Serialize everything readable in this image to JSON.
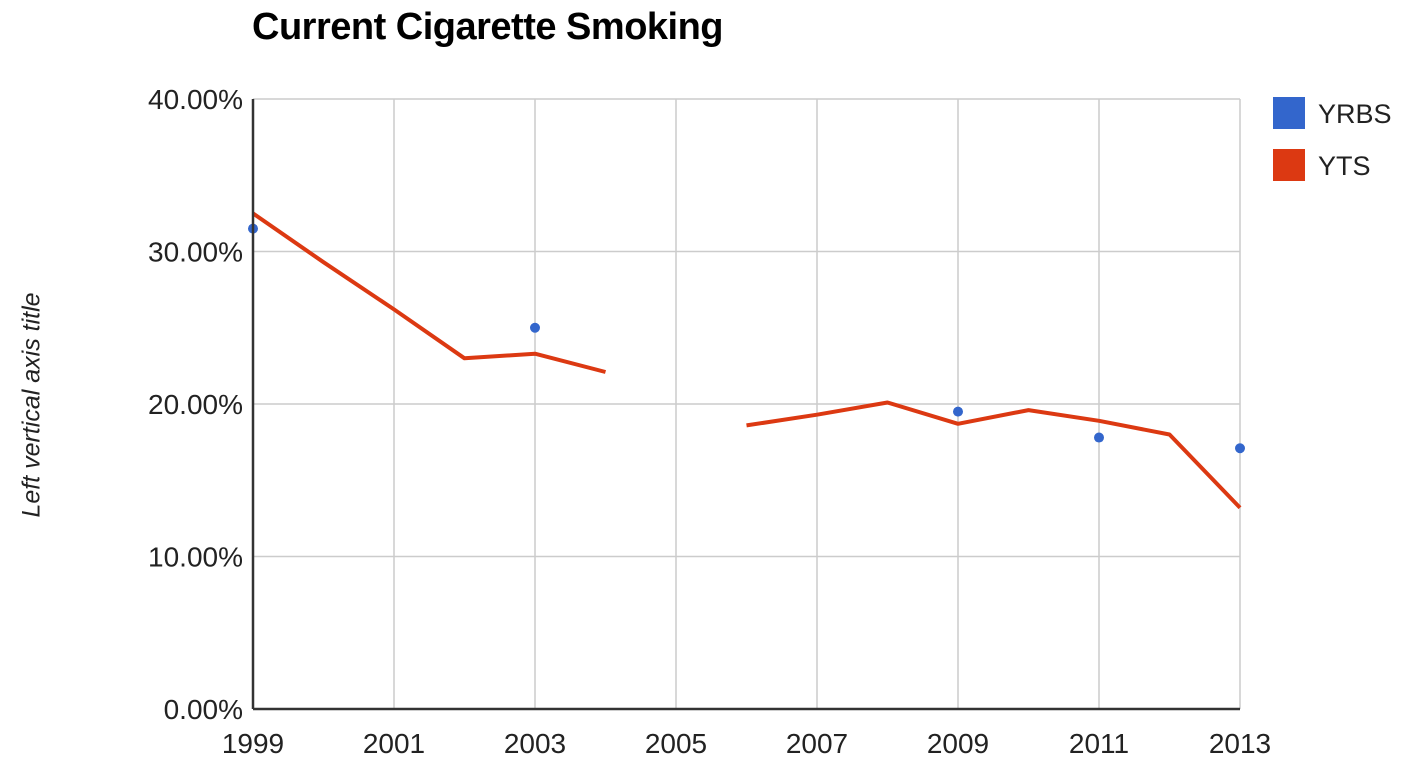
{
  "chart_data": {
    "type": "line",
    "title": "Current Cigarette Smoking",
    "xlabel": "",
    "ylabel": "Left vertical axis title",
    "xlim": [
      1999,
      2013
    ],
    "ylim": [
      0,
      0.4
    ],
    "x_ticks": [
      1999,
      2001,
      2003,
      2005,
      2007,
      2009,
      2011,
      2013
    ],
    "x_tick_labels": [
      "1999",
      "2001",
      "2003",
      "2005",
      "2007",
      "2009",
      "2011",
      "2013"
    ],
    "y_ticks": [
      0,
      0.1,
      0.2,
      0.3,
      0.4
    ],
    "y_tick_labels": [
      "0.00%",
      "10.00%",
      "20.00%",
      "30.00%",
      "40.00%"
    ],
    "grid": true,
    "legend_position": "right",
    "series": [
      {
        "name": "YRBS",
        "style": "points",
        "color": "#3366cc",
        "points": [
          {
            "x": 1999,
            "y": 0.315
          },
          {
            "x": 2003,
            "y": 0.25
          },
          {
            "x": 2009,
            "y": 0.195
          },
          {
            "x": 2011,
            "y": 0.178
          },
          {
            "x": 2013,
            "y": 0.171
          }
        ]
      },
      {
        "name": "YTS",
        "style": "line",
        "color": "#dc3912",
        "segments": [
          [
            {
              "x": 1999,
              "y": 0.325
            },
            {
              "x": 2000,
              "y": 0.293
            },
            {
              "x": 2001,
              "y": 0.262
            },
            {
              "x": 2002,
              "y": 0.23
            },
            {
              "x": 2003,
              "y": 0.233
            },
            {
              "x": 2004,
              "y": 0.221
            }
          ],
          [
            {
              "x": 2006,
              "y": 0.186
            },
            {
              "x": 2007,
              "y": 0.193
            },
            {
              "x": 2008,
              "y": 0.201
            },
            {
              "x": 2009,
              "y": 0.187
            },
            {
              "x": 2010,
              "y": 0.196
            },
            {
              "x": 2011,
              "y": 0.189
            },
            {
              "x": 2012,
              "y": 0.18
            },
            {
              "x": 2013,
              "y": 0.132
            }
          ]
        ]
      }
    ]
  }
}
